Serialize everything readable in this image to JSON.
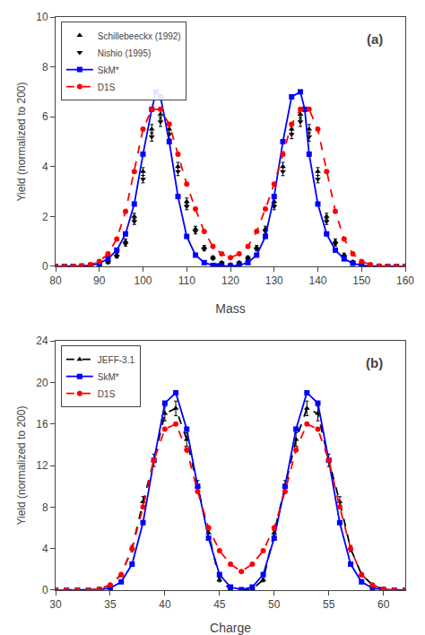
{
  "chart_data": [
    {
      "type": "line",
      "annotations": [
        {
          "text": "(a)"
        }
      ],
      "x_label": "Mass",
      "y_label": "Yield (normalized to 200)",
      "xlim": [
        80,
        160
      ],
      "ylim": [
        0,
        10
      ],
      "xticks": [
        80,
        90,
        100,
        110,
        120,
        130,
        140,
        150,
        160
      ],
      "yticks": [
        0,
        2,
        4,
        6,
        8,
        10
      ],
      "grid": false,
      "legend": "upper left",
      "series": [
        {
          "name": "Schillebeeckx (1992)",
          "type": "scatter",
          "marker": "triangle-up",
          "color": "#000000",
          "x": [
            88,
            90,
            92,
            94,
            96,
            98,
            100,
            102,
            104,
            106,
            108,
            110,
            112,
            114,
            116,
            118,
            120,
            122,
            124,
            126,
            128,
            130,
            132,
            134,
            136,
            138,
            140,
            142,
            144,
            146,
            148,
            150,
            152
          ],
          "values": [
            0.02,
            0.07,
            0.18,
            0.45,
            1.0,
            2.0,
            3.8,
            5.5,
            6.1,
            5.5,
            4.0,
            2.6,
            1.5,
            0.75,
            0.35,
            0.15,
            0.07,
            0.15,
            0.35,
            0.75,
            1.5,
            2.6,
            4.0,
            5.5,
            6.1,
            5.5,
            3.8,
            2.0,
            1.0,
            0.45,
            0.18,
            0.07,
            0.02
          ],
          "yerr": [
            0.01,
            0.03,
            0.05,
            0.08,
            0.1,
            0.13,
            0.16,
            0.19,
            0.2,
            0.19,
            0.17,
            0.14,
            0.11,
            0.09,
            0.07,
            0.05,
            0.04,
            0.05,
            0.07,
            0.09,
            0.11,
            0.14,
            0.17,
            0.19,
            0.2,
            0.19,
            0.16,
            0.13,
            0.1,
            0.08,
            0.05,
            0.03,
            0.01
          ]
        },
        {
          "name": "Nishio (1995)",
          "type": "scatter",
          "marker": "triangle-down",
          "color": "#000000",
          "x": [
            88,
            90,
            92,
            94,
            96,
            98,
            100,
            102,
            104,
            106,
            108,
            110,
            112,
            114,
            116,
            118,
            120,
            122,
            124,
            126,
            128,
            130,
            132,
            134,
            136,
            138,
            140,
            142,
            144,
            146,
            148,
            150,
            152
          ],
          "values": [
            0.02,
            0.06,
            0.16,
            0.4,
            0.9,
            1.8,
            3.5,
            5.2,
            5.8,
            5.3,
            3.8,
            2.4,
            1.4,
            0.7,
            0.32,
            0.13,
            0.06,
            0.13,
            0.32,
            0.7,
            1.4,
            2.4,
            3.8,
            5.3,
            5.8,
            5.2,
            3.5,
            1.8,
            0.9,
            0.4,
            0.16,
            0.06,
            0.02
          ],
          "yerr": [
            0.01,
            0.03,
            0.05,
            0.07,
            0.09,
            0.12,
            0.15,
            0.18,
            0.19,
            0.18,
            0.16,
            0.13,
            0.1,
            0.08,
            0.06,
            0.04,
            0.03,
            0.04,
            0.06,
            0.08,
            0.1,
            0.13,
            0.16,
            0.18,
            0.19,
            0.18,
            0.15,
            0.12,
            0.09,
            0.07,
            0.05,
            0.03,
            0.01
          ]
        },
        {
          "name": "SkM*",
          "type": "line",
          "marker": "square",
          "line_style": "solid",
          "color": "#0000ff",
          "x": [
            80,
            82,
            84,
            86,
            88,
            90,
            92,
            94,
            96,
            98,
            100,
            102,
            103,
            104,
            106,
            108,
            110,
            112,
            114,
            116,
            117,
            118,
            120,
            122,
            124,
            126,
            128,
            130,
            132,
            134,
            136,
            137,
            138,
            140,
            142,
            144,
            146,
            148,
            150,
            152,
            154,
            156,
            158,
            160
          ],
          "values": [
            0.0,
            0.0,
            0.0,
            0.01,
            0.04,
            0.12,
            0.3,
            0.65,
            1.3,
            2.5,
            4.5,
            6.3,
            7.0,
            6.8,
            5.0,
            2.8,
            1.2,
            0.45,
            0.15,
            0.04,
            0.02,
            0.01,
            0.01,
            0.04,
            0.15,
            0.45,
            1.2,
            2.8,
            5.0,
            6.8,
            7.0,
            6.3,
            4.5,
            2.5,
            1.3,
            0.65,
            0.3,
            0.12,
            0.04,
            0.01,
            0.0,
            0.0,
            0.0,
            0.0
          ]
        },
        {
          "name": "D1S",
          "type": "line",
          "marker": "circle",
          "line_style": "dashed",
          "color": "#ff0000",
          "x": [
            80,
            82,
            84,
            86,
            88,
            90,
            92,
            94,
            96,
            98,
            100,
            102,
            104,
            106,
            108,
            110,
            112,
            114,
            116,
            118,
            120,
            122,
            124,
            126,
            128,
            130,
            132,
            134,
            136,
            138,
            140,
            142,
            144,
            146,
            148,
            150,
            152,
            154,
            156,
            158,
            160
          ],
          "values": [
            0.0,
            0.0,
            0.0,
            0.02,
            0.07,
            0.2,
            0.5,
            1.1,
            2.2,
            3.8,
            5.5,
            6.3,
            6.3,
            5.7,
            4.5,
            3.3,
            2.3,
            1.4,
            0.8,
            0.5,
            0.35,
            0.5,
            0.8,
            1.4,
            2.3,
            3.3,
            4.5,
            5.7,
            6.3,
            6.3,
            5.5,
            3.8,
            2.2,
            1.1,
            0.5,
            0.2,
            0.07,
            0.02,
            0.0,
            0.0,
            0.0
          ]
        }
      ]
    },
    {
      "type": "line",
      "annotations": [
        {
          "text": "(b)"
        }
      ],
      "x_label": "Charge",
      "y_label": "Yield (normalized to 200)",
      "xlim": [
        30,
        62
      ],
      "ylim": [
        0,
        24
      ],
      "xticks": [
        30,
        35,
        40,
        45,
        50,
        55,
        60
      ],
      "yticks": [
        0,
        4,
        8,
        12,
        16,
        20,
        24
      ],
      "grid": false,
      "legend": "upper left",
      "series": [
        {
          "name": "JEFF-3.1",
          "type": "line",
          "marker": "triangle-up",
          "line_style": "dashed",
          "color": "#000000",
          "x": [
            30,
            31,
            32,
            33,
            34,
            35,
            36,
            37,
            38,
            39,
            40,
            41,
            42,
            43,
            44,
            45,
            46,
            47,
            48,
            49,
            50,
            51,
            52,
            53,
            54,
            55,
            56,
            57,
            58,
            59,
            60,
            61,
            62
          ],
          "values": [
            0.0,
            0.0,
            0.0,
            0.0,
            0.1,
            0.5,
            1.5,
            4.0,
            8.5,
            12.5,
            17.0,
            17.5,
            14.5,
            10.0,
            5.5,
            1.0,
            0.1,
            0.0,
            0.1,
            1.0,
            5.5,
            10.0,
            14.5,
            17.5,
            17.0,
            12.5,
            8.5,
            4.0,
            1.5,
            0.5,
            0.1,
            0.0,
            0.0
          ],
          "yerr": [
            0.0,
            0.0,
            0.0,
            0.0,
            0.05,
            0.1,
            0.2,
            0.3,
            0.5,
            0.6,
            0.7,
            0.7,
            0.65,
            0.55,
            0.45,
            0.2,
            0.05,
            0.0,
            0.05,
            0.2,
            0.45,
            0.55,
            0.65,
            0.7,
            0.7,
            0.6,
            0.5,
            0.3,
            0.2,
            0.1,
            0.05,
            0.0,
            0.0
          ]
        },
        {
          "name": "SkM*",
          "type": "line",
          "marker": "square",
          "line_style": "solid",
          "color": "#0000ff",
          "x": [
            30,
            31,
            32,
            33,
            34,
            35,
            36,
            37,
            38,
            39,
            40,
            41,
            42,
            43,
            44,
            45,
            46,
            47,
            48,
            49,
            50,
            51,
            52,
            53,
            54,
            55,
            56,
            57,
            58,
            59,
            60,
            61,
            62
          ],
          "values": [
            0.0,
            0.0,
            0.0,
            0.0,
            0.05,
            0.2,
            0.8,
            2.5,
            6.5,
            12.5,
            18.0,
            19.0,
            15.5,
            10.0,
            5.0,
            1.5,
            0.3,
            0.05,
            0.3,
            1.5,
            5.0,
            10.0,
            15.5,
            19.0,
            18.0,
            12.5,
            6.5,
            2.5,
            0.8,
            0.2,
            0.05,
            0.0,
            0.0
          ]
        },
        {
          "name": "D1S",
          "type": "line",
          "marker": "circle",
          "line_style": "dashed",
          "color": "#ff0000",
          "x": [
            30,
            31,
            32,
            33,
            34,
            35,
            36,
            37,
            38,
            39,
            40,
            41,
            42,
            43,
            44,
            45,
            46,
            47,
            48,
            49,
            50,
            51,
            52,
            53,
            54,
            55,
            56,
            57,
            58,
            59,
            60,
            61,
            62
          ],
          "values": [
            0.0,
            0.0,
            0.0,
            0.0,
            0.1,
            0.5,
            1.5,
            4.0,
            8.0,
            12.5,
            15.5,
            16.0,
            13.5,
            9.5,
            6.0,
            3.8,
            2.5,
            1.8,
            2.5,
            3.8,
            6.0,
            9.5,
            13.5,
            16.0,
            15.5,
            12.5,
            8.0,
            4.0,
            1.5,
            0.5,
            0.1,
            0.0,
            0.0
          ]
        }
      ]
    }
  ]
}
